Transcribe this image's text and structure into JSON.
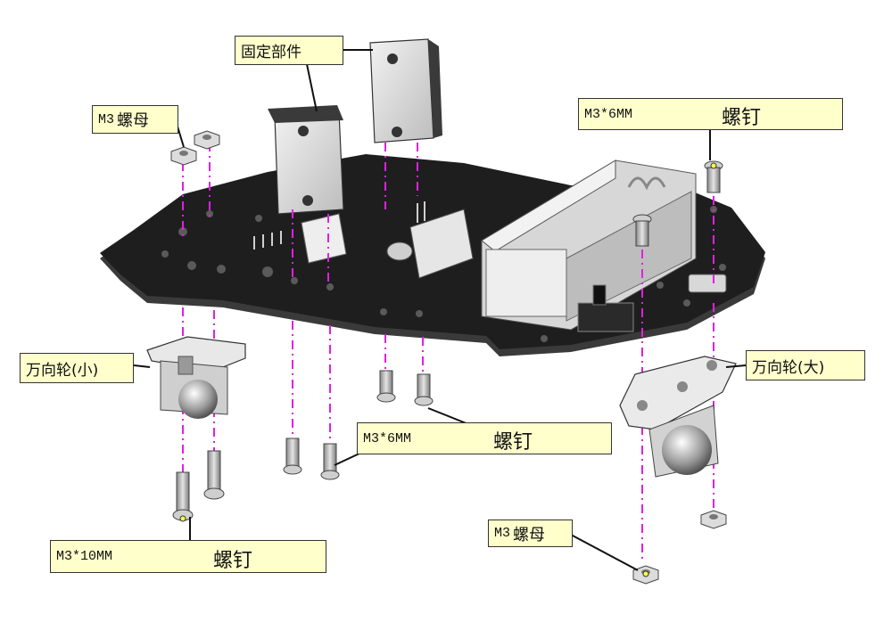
{
  "labels": {
    "fixing_part": "固定部件",
    "nut_top": {
      "spec": "M3",
      "name": "螺母"
    },
    "screw_top_right": {
      "spec": "M3*6MM",
      "name": "螺钉"
    },
    "caster_small": "万向轮(小)",
    "caster_large": "万向轮(大)",
    "screw_middle": {
      "spec": "M3*6MM",
      "name": "螺钉"
    },
    "screw_bottom_left": {
      "spec": "M3*10MM",
      "name": "螺钉"
    },
    "nut_bottom": {
      "spec": "M3",
      "name": "螺母"
    }
  },
  "colors": {
    "callout_fill": "#ffffcc",
    "guide_line": "#e020e0",
    "board": "#1e1e1e",
    "metal": "#c8c8c8"
  }
}
